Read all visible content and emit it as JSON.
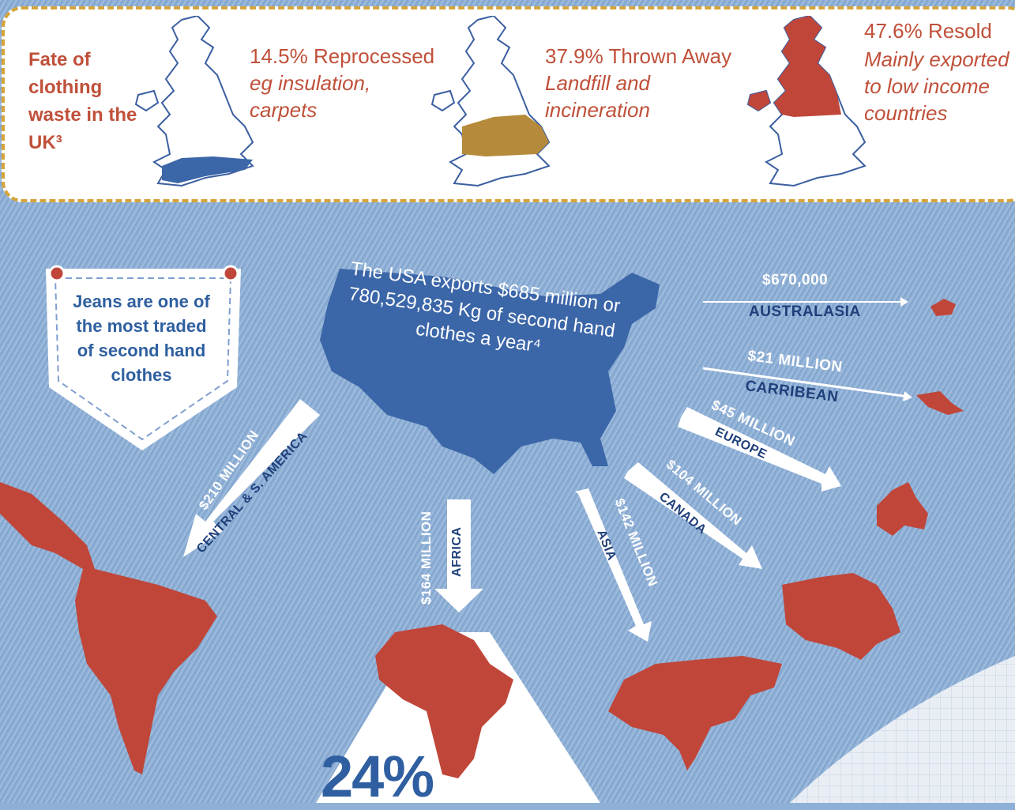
{
  "uk": {
    "title": "Fate of clothing waste in the UK³",
    "segments": [
      {
        "percent": "14.5% Reprocessed",
        "detail": "eg insulation, carpets",
        "color": "#3b66a8"
      },
      {
        "percent": "37.9% Thrown Away",
        "detail": "Landfill and incineration",
        "color": "#b58a3a"
      },
      {
        "percent": "47.6% Resold",
        "detail": "Mainly exported to low income countries",
        "color": "#c0463a"
      }
    ]
  },
  "pocket": {
    "text": "Jeans are one of the most traded of second hand clothes"
  },
  "usa": {
    "text": "The USA exports $685 million or 780,529,835 Kg of second hand clothes a year⁴"
  },
  "exports": [
    {
      "amount": "$670,000",
      "region": "AUSTRALASIA"
    },
    {
      "amount": "$21 MILLION",
      "region": "CARRIBEAN"
    },
    {
      "amount": "$45 MILLION",
      "region": "EUROPE"
    },
    {
      "amount": "$104 MILLION",
      "region": "CANADA"
    },
    {
      "amount": "$142 MILLION",
      "region": "ASIA"
    },
    {
      "amount": "$164 MILLION",
      "region": "AFRICA"
    },
    {
      "amount": "$210 MILLION",
      "region": "CENTRAL & S. AMERICA"
    }
  ],
  "bottom": {
    "percent": "24%"
  },
  "colors": {
    "red": "#c0463a",
    "blue": "#3b66a8",
    "gold": "#d6a43a",
    "denim": "#8fb0d6"
  }
}
